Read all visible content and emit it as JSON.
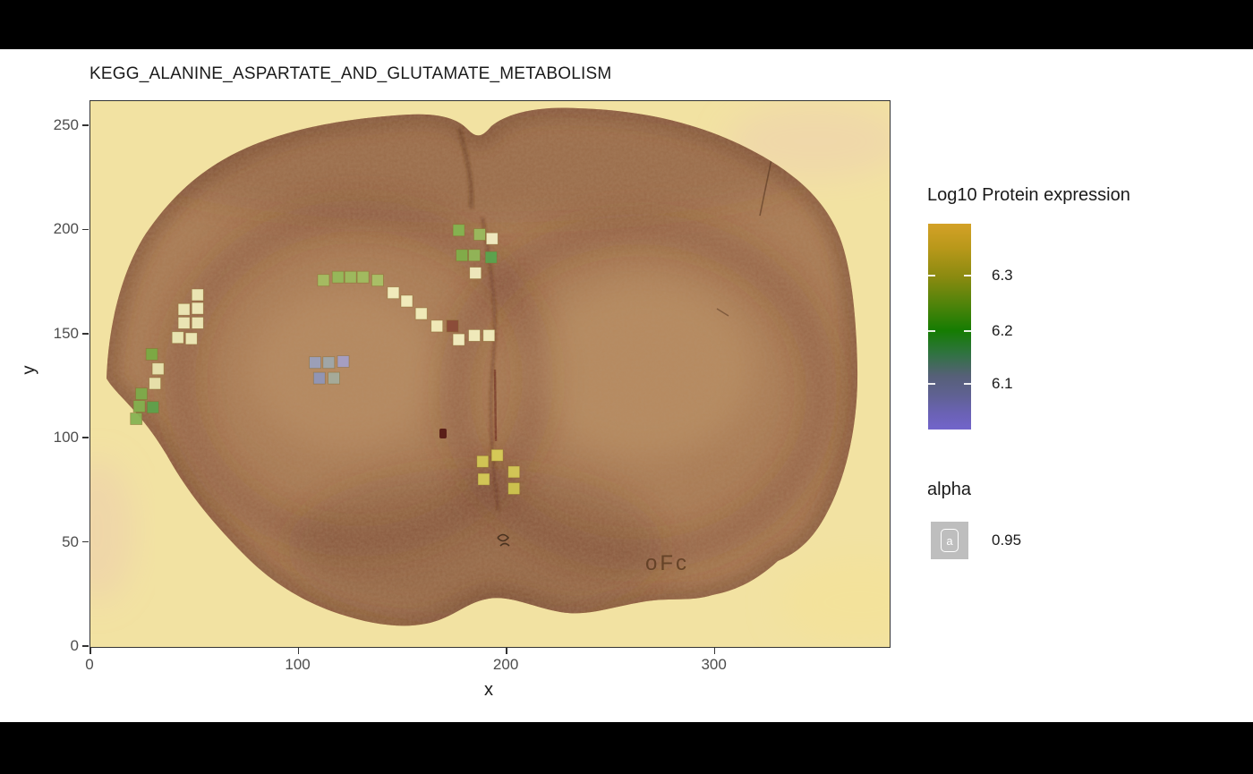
{
  "window": {
    "background": "#000000",
    "content_background": "#ffffff"
  },
  "chart_data": {
    "type": "scatter",
    "title": "KEGG_ALANINE_ASPARTATE_AND_GLUTAMATE_METABOLISM",
    "xlabel": "x",
    "ylabel": "y",
    "xlim": [
      0,
      384
    ],
    "ylim": [
      0,
      262
    ],
    "x_ticks": [
      0,
      100,
      200,
      300
    ],
    "y_ticks": [
      0,
      50,
      100,
      150,
      200,
      250
    ],
    "grid": false,
    "panel_background": "#f2e2a2",
    "background_image_desc": "mouse brain coronal tissue section, brown histology on pale yellow slide",
    "tissue_annotation": "oFc",
    "marker": {
      "shape": "square",
      "size_units": 5.6,
      "alpha": 0.95
    },
    "points": [
      {
        "x": 177,
        "y": 200,
        "color": "#84b450"
      },
      {
        "x": 187,
        "y": 198,
        "color": "#9aba5e"
      },
      {
        "x": 193,
        "y": 196,
        "color": "#f2eec4"
      },
      {
        "x": 178.5,
        "y": 188,
        "color": "#7fae49"
      },
      {
        "x": 184.5,
        "y": 188,
        "color": "#90b657"
      },
      {
        "x": 192.5,
        "y": 187,
        "color": "#58a44e"
      },
      {
        "x": 185,
        "y": 179.5,
        "color": "#f1edc1"
      },
      {
        "x": 112,
        "y": 176,
        "color": "#a4bd62"
      },
      {
        "x": 119,
        "y": 177.5,
        "color": "#95b95a"
      },
      {
        "x": 125,
        "y": 177.5,
        "color": "#9cbb5e"
      },
      {
        "x": 131,
        "y": 177.5,
        "color": "#a0bd60"
      },
      {
        "x": 138,
        "y": 176,
        "color": "#a9c167"
      },
      {
        "x": 145.5,
        "y": 170,
        "color": "#f3efc0"
      },
      {
        "x": 152,
        "y": 166,
        "color": "#f3efc0"
      },
      {
        "x": 159,
        "y": 160,
        "color": "#f2eebd"
      },
      {
        "x": 166.5,
        "y": 154,
        "color": "#f3eebd"
      },
      {
        "x": 174,
        "y": 154,
        "color": "#8a4a38"
      },
      {
        "x": 177,
        "y": 147.5,
        "color": "#f4f0c3"
      },
      {
        "x": 184.5,
        "y": 149.5,
        "color": "#f3efc0"
      },
      {
        "x": 191.5,
        "y": 149.5,
        "color": "#f2eebf"
      },
      {
        "x": 51.5,
        "y": 169,
        "color": "#eeeab8"
      },
      {
        "x": 45,
        "y": 162,
        "color": "#eeeab8"
      },
      {
        "x": 51.5,
        "y": 162.5,
        "color": "#f0ecbc"
      },
      {
        "x": 45,
        "y": 155.5,
        "color": "#eeeab8"
      },
      {
        "x": 51.5,
        "y": 155.5,
        "color": "#eeeab8"
      },
      {
        "x": 42,
        "y": 148.5,
        "color": "#eceab6"
      },
      {
        "x": 48.5,
        "y": 148,
        "color": "#eeeab8"
      },
      {
        "x": 29.5,
        "y": 140.5,
        "color": "#79ab43"
      },
      {
        "x": 32.5,
        "y": 133.5,
        "color": "#e9e6b0"
      },
      {
        "x": 31,
        "y": 126.5,
        "color": "#e9e5ae"
      },
      {
        "x": 24.5,
        "y": 121.5,
        "color": "#7cab4a"
      },
      {
        "x": 23.5,
        "y": 115.5,
        "color": "#83b04e"
      },
      {
        "x": 30,
        "y": 115,
        "color": "#5da14b"
      },
      {
        "x": 22,
        "y": 109.5,
        "color": "#86b253"
      },
      {
        "x": 108,
        "y": 136.5,
        "color": "#9aa0bd"
      },
      {
        "x": 114.5,
        "y": 136.5,
        "color": "#9fa8ab"
      },
      {
        "x": 121.5,
        "y": 137,
        "color": "#a49fc6"
      },
      {
        "x": 110,
        "y": 129,
        "color": "#8f96b8"
      },
      {
        "x": 117,
        "y": 129,
        "color": "#a4ac9c"
      },
      {
        "x": 188.5,
        "y": 89,
        "color": "#d3c855"
      },
      {
        "x": 195.5,
        "y": 92,
        "color": "#d8cd59"
      },
      {
        "x": 189,
        "y": 80.5,
        "color": "#d5ca57"
      },
      {
        "x": 203.5,
        "y": 84,
        "color": "#d4c956"
      },
      {
        "x": 203.5,
        "y": 76,
        "color": "#cfc64f"
      }
    ]
  },
  "legend": {
    "colorbar": {
      "title": "Log10 Protein expression",
      "ticks": [
        {
          "label": "6.3",
          "pct": 25
        },
        {
          "label": "6.2",
          "pct": 52
        },
        {
          "label": "6.1",
          "pct": 78
        }
      ],
      "gradient_stops": [
        {
          "pct": 0,
          "color": "#d4a127"
        },
        {
          "pct": 12,
          "color": "#b8981a"
        },
        {
          "pct": 26,
          "color": "#8a8a10"
        },
        {
          "pct": 40,
          "color": "#4c830a"
        },
        {
          "pct": 52,
          "color": "#157c02"
        },
        {
          "pct": 63,
          "color": "#2f7340"
        },
        {
          "pct": 74,
          "color": "#566078"
        },
        {
          "pct": 83,
          "color": "#5f6191"
        },
        {
          "pct": 92,
          "color": "#6a62b4"
        },
        {
          "pct": 100,
          "color": "#7264cb"
        }
      ]
    },
    "alpha": {
      "title": "alpha",
      "key_letter": "a",
      "key_color": "#bebebe",
      "value": "0.95"
    }
  },
  "axes_style": {
    "tick_label_color": "#4d4d4d",
    "axis_label_color": "#1a1a1a",
    "panel_border": "#333333"
  }
}
